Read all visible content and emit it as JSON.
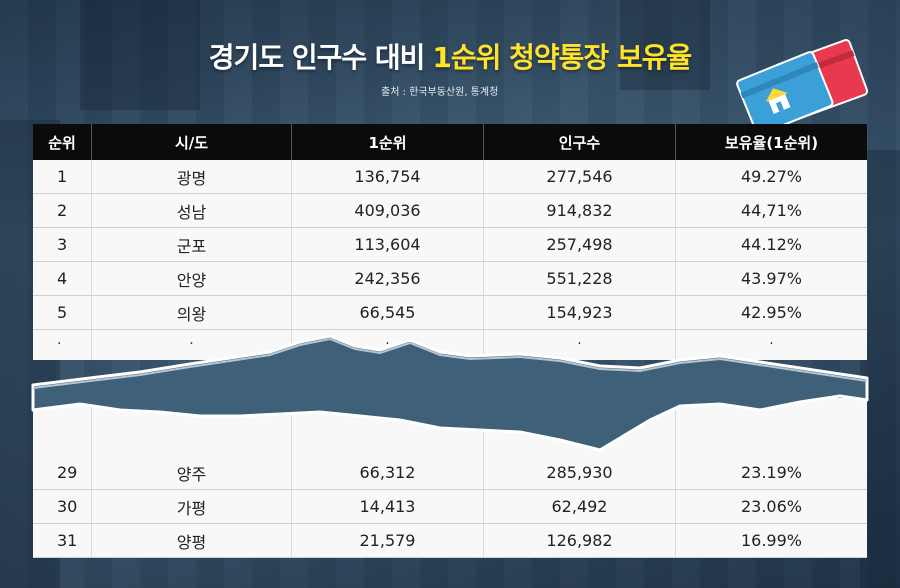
{
  "title": {
    "main": "경기도 인구수 대비",
    "highlight": "1순위 청약통장 보유율"
  },
  "source": "출처 : 한국부동산원, 통계청",
  "table": {
    "columns": [
      "순위",
      "시/도",
      "1순위",
      "인구수",
      "보유율(1순위)"
    ],
    "top_rows": [
      [
        "1",
        "광명",
        "136,754",
        "277,546",
        "49.27%"
      ],
      [
        "2",
        "성남",
        "409,036",
        "914,832",
        "44,71%"
      ],
      [
        "3",
        "군포",
        "113,604",
        "257,498",
        "44.12%"
      ],
      [
        "4",
        "안양",
        "242,356",
        "551,228",
        "43.97%"
      ],
      [
        "5",
        "의왕",
        "66,545",
        "154,923",
        "42.95%"
      ]
    ],
    "ellipsis": [
      ".",
      ".",
      ".",
      ".",
      "."
    ],
    "bottom_rows": [
      [
        "29",
        "양주",
        "66,312",
        "285,930",
        "23.19%"
      ],
      [
        "30",
        "가평",
        "14,413",
        "62,492",
        "23.06%"
      ],
      [
        "31",
        "양평",
        "21,579",
        "126,982",
        "16.99%"
      ]
    ]
  },
  "colors": {
    "highlight": "#ffe22a",
    "header_bg": "#0b0b0b",
    "card_blue": "#3ba0d8",
    "card_red": "#e8394f"
  },
  "icons": [
    "bankbook-card-icon",
    "house-icon"
  ]
}
